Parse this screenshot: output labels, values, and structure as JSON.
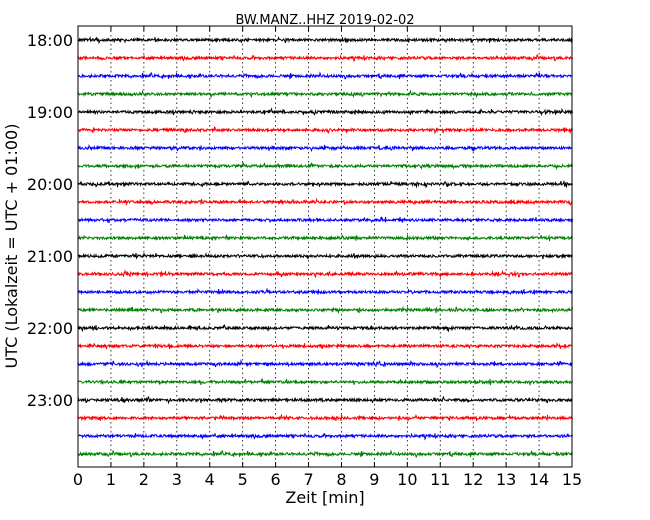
{
  "chart_data": {
    "type": "line",
    "title": "BW.MANZ..HHZ 2019-02-02",
    "xlabel": "Zeit  [min]",
    "ylabel": "UTC (Lokalzeit = UTC + 01:00)",
    "xlim": [
      0,
      15
    ],
    "x_ticks": [
      "0",
      "1",
      "2",
      "3",
      "4",
      "5",
      "6",
      "7",
      "8",
      "9",
      "10",
      "11",
      "12",
      "13",
      "14",
      "15"
    ],
    "y_tick_labels": [
      "18:00",
      "19:00",
      "20:00",
      "21:00",
      "22:00",
      "23:00"
    ],
    "grid": "vertical dotted",
    "trace_colors": [
      "#000000",
      "#ff0000",
      "#0000ff",
      "#008000"
    ],
    "traces": [
      {
        "start": "18:00"
      },
      {
        "start": "18:15"
      },
      {
        "start": "18:30"
      },
      {
        "start": "18:45"
      },
      {
        "start": "19:00"
      },
      {
        "start": "19:15"
      },
      {
        "start": "19:30"
      },
      {
        "start": "19:45"
      },
      {
        "start": "20:00"
      },
      {
        "start": "20:15"
      },
      {
        "start": "20:30"
      },
      {
        "start": "20:45"
      },
      {
        "start": "21:00"
      },
      {
        "start": "21:15"
      },
      {
        "start": "21:30"
      },
      {
        "start": "21:45"
      },
      {
        "start": "22:00"
      },
      {
        "start": "22:15"
      },
      {
        "start": "22:30"
      },
      {
        "start": "22:45"
      },
      {
        "start": "23:00"
      },
      {
        "start": "23:15"
      },
      {
        "start": "23:30"
      },
      {
        "start": "23:45"
      }
    ]
  }
}
